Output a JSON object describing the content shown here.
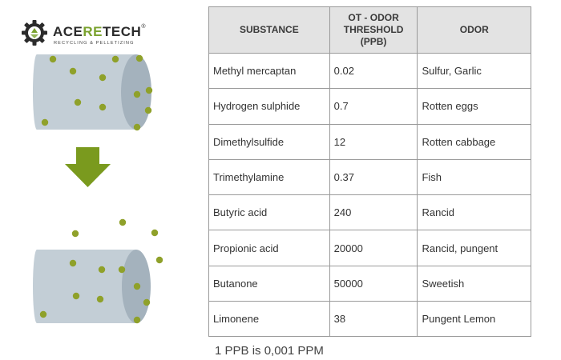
{
  "logo": {
    "brand_prefix": "ACE",
    "brand_highlight": "RE",
    "brand_suffix": "TECH",
    "registered": "®",
    "tagline": "RECYCLING & PELLETIZING",
    "icon": "gear-recycle-icon"
  },
  "illustration": {
    "colors": {
      "cylinder": "#c3ced6",
      "cylinder_end": "#a4b2bd",
      "dots": "#8fa12a",
      "arrow": "#7a9a1e"
    }
  },
  "table": {
    "headers": {
      "substance": "SUBSTANCE",
      "threshold_line1": "OT - ODOR",
      "threshold_line2": "THRESHOLD",
      "threshold_line3": "(PPB)",
      "odor": "ODOR"
    },
    "rows": [
      {
        "substance": "Methyl mercaptan",
        "threshold": "0.02",
        "odor": "Sulfur, Garlic"
      },
      {
        "substance": "Hydrogen sulphide",
        "threshold": "0.7",
        "odor": "Rotten eggs"
      },
      {
        "substance": "Dimethylsulfide",
        "threshold": "12",
        "odor": "Rotten cabbage"
      },
      {
        "substance": "Trimethylamine",
        "threshold": "0.37",
        "odor": "Fish"
      },
      {
        "substance": "Butyric acid",
        "threshold": "240",
        "odor": "Rancid"
      },
      {
        "substance": "Propionic acid",
        "threshold": "20000",
        "odor": "Rancid, pungent"
      },
      {
        "substance": "Butanone",
        "threshold": "50000",
        "odor": "Sweetish"
      },
      {
        "substance": "Limonene",
        "threshold": "38",
        "odor": "Pungent Lemon"
      }
    ]
  },
  "footnote": "1 PPB is 0,001 PPM"
}
